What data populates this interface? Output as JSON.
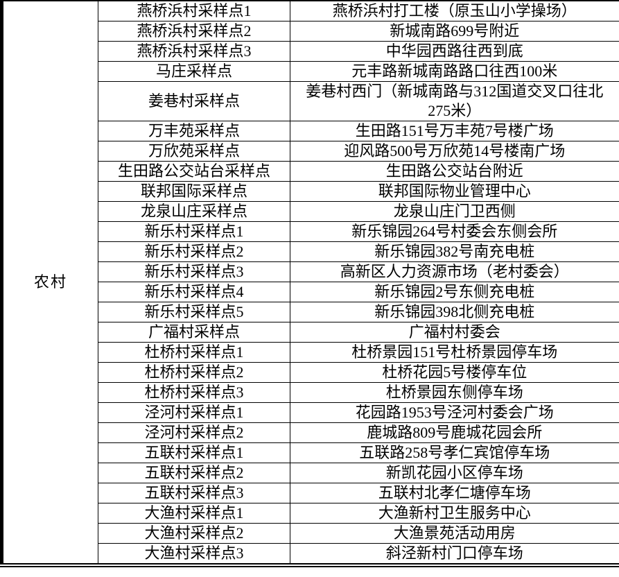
{
  "colors": {
    "border": "#000000",
    "text": "#000000",
    "background": "#ffffff"
  },
  "table": {
    "category_label": "农村",
    "rows": [
      {
        "site": "燕桥浜村采样点1",
        "location": "燕桥浜村打工楼（原玉山小学操场）"
      },
      {
        "site": "燕桥浜村采样点2",
        "location": "新城南路699号附近"
      },
      {
        "site": "燕桥浜村采样点3",
        "location": "中华园西路往西到底"
      },
      {
        "site": "马庄采样点",
        "location": "元丰路新城南路路口往西100米"
      },
      {
        "site": "姜巷村采样点",
        "location": "姜巷村西门（新城南路与312国道交叉口往北275米）"
      },
      {
        "site": "万丰苑采样点",
        "location": "生田路151号万丰苑7号楼广场"
      },
      {
        "site": "万欣苑采样点",
        "location": "迎风路500号万欣苑14号楼南广场"
      },
      {
        "site": "生田路公交站台采样点",
        "location": "生田路公交站台附近"
      },
      {
        "site": "联邦国际采样点",
        "location": "联邦国际物业管理中心"
      },
      {
        "site": "龙泉山庄采样点",
        "location": "龙泉山庄门卫西侧"
      },
      {
        "site": "新乐村采样点1",
        "location": "新乐锦园264号村委会东侧会所"
      },
      {
        "site": "新乐村采样点2",
        "location": "新乐锦园382号南充电桩"
      },
      {
        "site": "新乐村采样点3",
        "location": "高新区人力资源市场（老村委会）"
      },
      {
        "site": "新乐村采样点4",
        "location": "新乐锦园2号东侧充电桩"
      },
      {
        "site": "新乐村采样点5",
        "location": "新乐锦园398北侧充电桩"
      },
      {
        "site": "广福村采样点",
        "location": "广福村村委会"
      },
      {
        "site": "杜桥村采样点1",
        "location": "杜桥景园151号杜桥景园停车场"
      },
      {
        "site": "杜桥村采样点2",
        "location": "杜桥花园5号楼停车位"
      },
      {
        "site": "杜桥村采样点3",
        "location": "杜桥景园东侧停车场"
      },
      {
        "site": "泾河村采样点1",
        "location": "花园路1953号泾河村委会广场"
      },
      {
        "site": "泾河村采样点2",
        "location": "鹿城路809号鹿城花园会所"
      },
      {
        "site": "五联村采样点1",
        "location": "五联路258号孝仁宾馆停车场"
      },
      {
        "site": "五联村采样点2",
        "location": "新凯花园小区停车场"
      },
      {
        "site": "五联村采样点3",
        "location": "五联村北孝仁塘停车场"
      },
      {
        "site": "大渔村采样点1",
        "location": "大渔新村卫生服务中心"
      },
      {
        "site": "大渔村采样点2",
        "location": "大渔景苑活动用房"
      },
      {
        "site": "大渔村采样点3",
        "location": "斜泾新村门口停车场"
      }
    ]
  }
}
